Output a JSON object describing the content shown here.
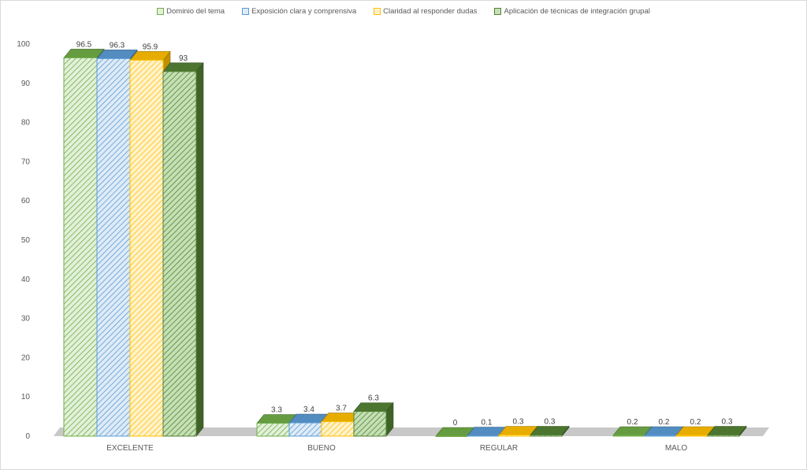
{
  "chart_data": {
    "type": "bar",
    "categories": [
      "EXCELENTE",
      "BUENO",
      "REGULAR",
      "MALO"
    ],
    "series": [
      {
        "name": "Dominio del tema",
        "values": [
          96.5,
          3.3,
          0,
          0.2
        ],
        "color": "#70ad47",
        "fill": "#e2f0d9",
        "labels": [
          "96.5",
          "3.3",
          "0",
          "0.2"
        ]
      },
      {
        "name": "Exposición clara y comprensiva",
        "values": [
          96.3,
          3.4,
          0.1,
          0.2
        ],
        "color": "#5b9bd5",
        "fill": "#deebf7",
        "labels": [
          "96.3",
          "3.4",
          "0.1",
          "0.2"
        ]
      },
      {
        "name": "Claridad al responder dudas",
        "values": [
          95.9,
          3.7,
          0.3,
          0.2
        ],
        "color": "#ffc000",
        "fill": "#fff2cc",
        "labels": [
          "95.9",
          "3.7",
          "0.3",
          "0.2"
        ]
      },
      {
        "name": "Aplicación de técnicas de integración grupal",
        "values": [
          93,
          6.3,
          0.3,
          0.3
        ],
        "color": "#548235",
        "fill": "#c5e0b4",
        "labels": [
          "93",
          "6.3",
          "0.3",
          "0.3"
        ]
      }
    ],
    "yticks": [
      "0",
      "10",
      "20",
      "30",
      "40",
      "50",
      "60",
      "70",
      "80",
      "90",
      "100"
    ],
    "ylim": [
      0,
      100
    ],
    "title": "",
    "xlabel": "",
    "ylabel": "",
    "legend_position": "top",
    "grid": false,
    "style": "3d-bar",
    "floor_color": "#c8c8c8"
  }
}
